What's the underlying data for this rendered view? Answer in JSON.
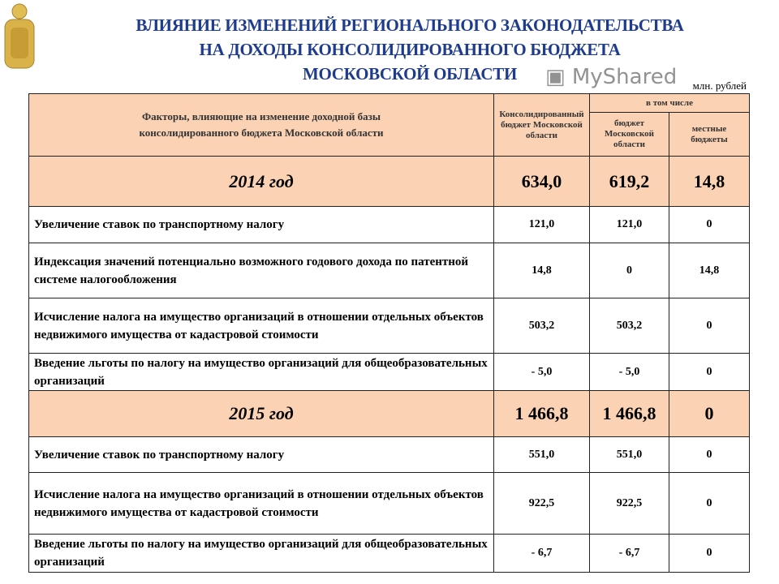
{
  "header": {
    "title_lines": [
      "ВЛИЯНИЕ ИЗМЕНЕНИЙ РЕГИОНАЛЬНОГО ЗАКОНОДАТЕЛЬСТВА",
      "НА ДОХОДЫ КОНСОЛИДИРОВАННОГО БЮДЖЕТА",
      "МОСКОВСКОЙ ОБЛАСТИ"
    ],
    "unit": "млн. рублей"
  },
  "table": {
    "columns": {
      "factors": "Факторы, влияющие на изменение доходной базы консолидированного бюджета Московской области",
      "consolidated": "Консолидированный бюджет Московской области",
      "including": "в том числе",
      "regional": "бюджет Московской области",
      "local": "местные бюджеты"
    },
    "rows": [
      {
        "type": "year",
        "label": "2014 год",
        "values": [
          "634,0",
          "619,2",
          "14,8"
        ]
      },
      {
        "type": "item",
        "label": "Увеличение ставок по транспортному налогу",
        "values": [
          "121,0",
          "121,0",
          "0"
        ]
      },
      {
        "type": "item",
        "label": "Индексация значений потенциально возможного годового дохода по патентной системе налогообложения",
        "values": [
          "14,8",
          "0",
          "14,8"
        ]
      },
      {
        "type": "item",
        "label": "Исчисление налога на имущество организаций в отношении отдельных объектов недвижимого имущества от кадастровой стоимости",
        "values": [
          "503,2",
          "503,2",
          "0"
        ]
      },
      {
        "type": "item",
        "label": "Введение льготы по налогу на имущество организаций для общеобразовательных организаций",
        "values": [
          "- 5,0",
          "- 5,0",
          "0"
        ]
      },
      {
        "type": "year",
        "label": "2015 год",
        "values": [
          "1 466,8",
          "1 466,8",
          "0"
        ]
      },
      {
        "type": "item",
        "label": "Увеличение ставок по транспортному налогу",
        "values": [
          "551,0",
          "551,0",
          "0"
        ]
      },
      {
        "type": "item",
        "label": "Исчисление налога на имущество организаций в отношении отдельных объектов недвижимого имущества от кадастровой стоимости",
        "values": [
          "922,5",
          "922,5",
          "0"
        ]
      },
      {
        "type": "item",
        "label": "Введение льготы по налогу на имущество организаций для общеобразовательных организаций",
        "values": [
          "- 6,7",
          "- 6,7",
          "0"
        ]
      }
    ]
  },
  "watermark": "MyShared",
  "colors": {
    "title": "#1f3c8c",
    "header_fill": "#fbd3b4"
  }
}
